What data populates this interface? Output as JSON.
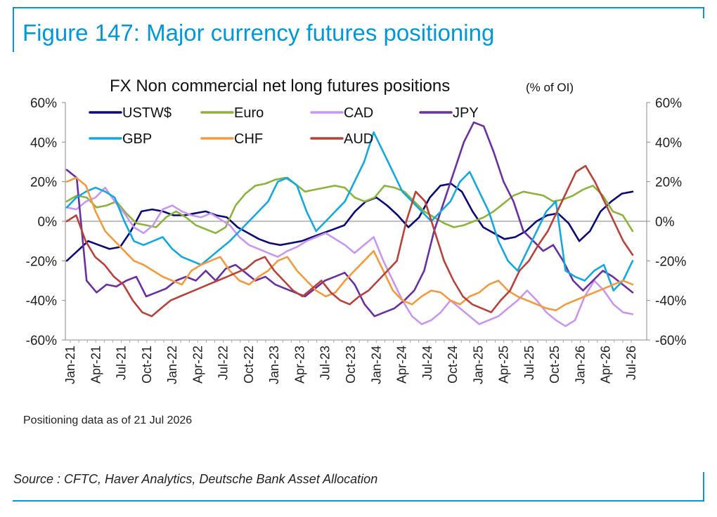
{
  "figure_title": "Figure 147: Major currency futures positioning",
  "note": "Positioning data as of 21 Jul 2026",
  "source": "Source : CFTC, Haver Analytics, Deutsche Bank Asset Allocation",
  "chart_data": {
    "type": "line",
    "title": "FX Non commercial net long futures positions",
    "subtitle": "(% of OI)",
    "ylim": [
      -60,
      60
    ],
    "y_ticks": [
      "60%",
      "40%",
      "20%",
      "0%",
      "-20%",
      "-40%",
      "-60%"
    ],
    "y_tick_values": [
      60,
      40,
      20,
      0,
      -20,
      -40,
      -60
    ],
    "x_ticks": [
      "Jan-21",
      "Apr-21",
      "Jul-21",
      "Oct-21",
      "Jan-22",
      "Apr-22",
      "Jul-22",
      "Oct-22",
      "Jan-23",
      "Apr-23",
      "Jul-23",
      "Oct-23",
      "Jan-24",
      "Apr-24",
      "Jul-24",
      "Oct-24",
      "Jan-25",
      "Apr-25",
      "Jul-25",
      "Oct-25",
      "Jan-26",
      "Apr-26",
      "Jul-26"
    ],
    "x_start": "2021-01",
    "x_end": "2026-07",
    "grid": false,
    "zero_line": true,
    "dual_y_axis": true,
    "legend_position": "top",
    "series": [
      {
        "name": "USTW$",
        "color": "#0a0a78",
        "values": [
          -20,
          -15,
          -10,
          -12,
          -14,
          -13,
          -5,
          5,
          6,
          5,
          3,
          3,
          4,
          5,
          3,
          2,
          -3,
          -6,
          -9,
          -11,
          -12,
          -11,
          -10,
          -8,
          -6,
          -4,
          -2,
          5,
          10,
          12,
          8,
          3,
          -3,
          2,
          12,
          18,
          19,
          15,
          5,
          -3,
          -6,
          -9,
          -8,
          -5,
          0,
          3,
          4,
          -1,
          -10,
          -5,
          5,
          10,
          14,
          15
        ]
      },
      {
        "name": "Euro",
        "color": "#8cb43c",
        "values": [
          10,
          13,
          12,
          7,
          8,
          10,
          4,
          -1,
          -2,
          -3,
          2,
          5,
          2,
          -2,
          -4,
          -6,
          -3,
          8,
          14,
          18,
          19,
          21,
          22,
          19,
          15,
          16,
          17,
          18,
          17,
          12,
          10,
          12,
          18,
          17,
          15,
          10,
          5,
          2,
          -1,
          -3,
          -2,
          0,
          2,
          5,
          9,
          13,
          15,
          14,
          13,
          10,
          11,
          13,
          16,
          18,
          13,
          5,
          3,
          -5
        ]
      },
      {
        "name": "CAD",
        "color": "#c896f0",
        "values": [
          7,
          6,
          10,
          12,
          17,
          10,
          4,
          -3,
          -6,
          -2,
          6,
          8,
          5,
          3,
          2,
          4,
          1,
          -2,
          -8,
          -12,
          -14,
          -16,
          -18,
          -15,
          -13,
          -10,
          -8,
          -6,
          -9,
          -12,
          -16,
          -12,
          -8,
          -20,
          -30,
          -40,
          -48,
          -52,
          -50,
          -46,
          -40,
          -44,
          -48,
          -52,
          -50,
          -48,
          -44,
          -40,
          -35,
          -40,
          -46,
          -50,
          -53,
          -50,
          -38,
          -30,
          -35,
          -42,
          -46,
          -47
        ]
      },
      {
        "name": "JPY",
        "color": "#6a2fa0",
        "values": [
          26,
          22,
          -30,
          -36,
          -32,
          -33,
          -30,
          -28,
          -38,
          -36,
          -34,
          -30,
          -28,
          -30,
          -25,
          -30,
          -24,
          -22,
          -26,
          -30,
          -28,
          -32,
          -34,
          -36,
          -38,
          -34,
          -30,
          -28,
          -26,
          -32,
          -42,
          -48,
          -46,
          -44,
          -40,
          -35,
          -25,
          -5,
          10,
          25,
          40,
          50,
          48,
          35,
          20,
          10,
          -5,
          -10,
          -15,
          -12,
          -20,
          -30,
          -35,
          -30,
          -25,
          -28,
          -32,
          -36
        ]
      },
      {
        "name": "GBP",
        "color": "#13a8e0",
        "values": [
          7,
          12,
          15,
          17,
          15,
          12,
          0,
          -10,
          -12,
          -10,
          -8,
          -14,
          -18,
          -20,
          -22,
          -18,
          -14,
          -10,
          -5,
          0,
          5,
          10,
          20,
          22,
          18,
          5,
          -5,
          0,
          5,
          10,
          20,
          30,
          45,
          35,
          25,
          15,
          10,
          5,
          0,
          5,
          10,
          20,
          25,
          15,
          5,
          -10,
          -20,
          -25,
          -15,
          -5,
          5,
          10,
          -25,
          -28,
          -30,
          -25,
          -22,
          -35,
          -30,
          -20
        ]
      },
      {
        "name": "CHF",
        "color": "#f59a3c",
        "values": [
          20,
          22,
          18,
          5,
          -5,
          -10,
          -15,
          -20,
          -22,
          -25,
          -28,
          -30,
          -32,
          -25,
          -22,
          -20,
          -18,
          -25,
          -30,
          -32,
          -28,
          -25,
          -20,
          -18,
          -25,
          -30,
          -35,
          -38,
          -36,
          -30,
          -25,
          -20,
          -15,
          -25,
          -35,
          -40,
          -42,
          -38,
          -35,
          -36,
          -40,
          -42,
          -38,
          -36,
          -32,
          -30,
          -35,
          -38,
          -40,
          -42,
          -44,
          -45,
          -42,
          -40,
          -38,
          -36,
          -34,
          -32,
          -30,
          -32
        ]
      },
      {
        "name": "AUD",
        "color": "#b8423a",
        "values": [
          0,
          3,
          -10,
          -18,
          -22,
          -28,
          -32,
          -40,
          -46,
          -48,
          -44,
          -40,
          -38,
          -36,
          -34,
          -32,
          -30,
          -28,
          -26,
          -24,
          -20,
          -18,
          -25,
          -30,
          -35,
          -38,
          -34,
          -30,
          -36,
          -40,
          -42,
          -38,
          -35,
          -30,
          -25,
          -20,
          0,
          15,
          10,
          -5,
          -20,
          -30,
          -38,
          -42,
          -44,
          -46,
          -40,
          -35,
          -25,
          -20,
          -12,
          -5,
          5,
          15,
          25,
          28,
          20,
          10,
          0,
          -10,
          -17
        ]
      }
    ]
  }
}
